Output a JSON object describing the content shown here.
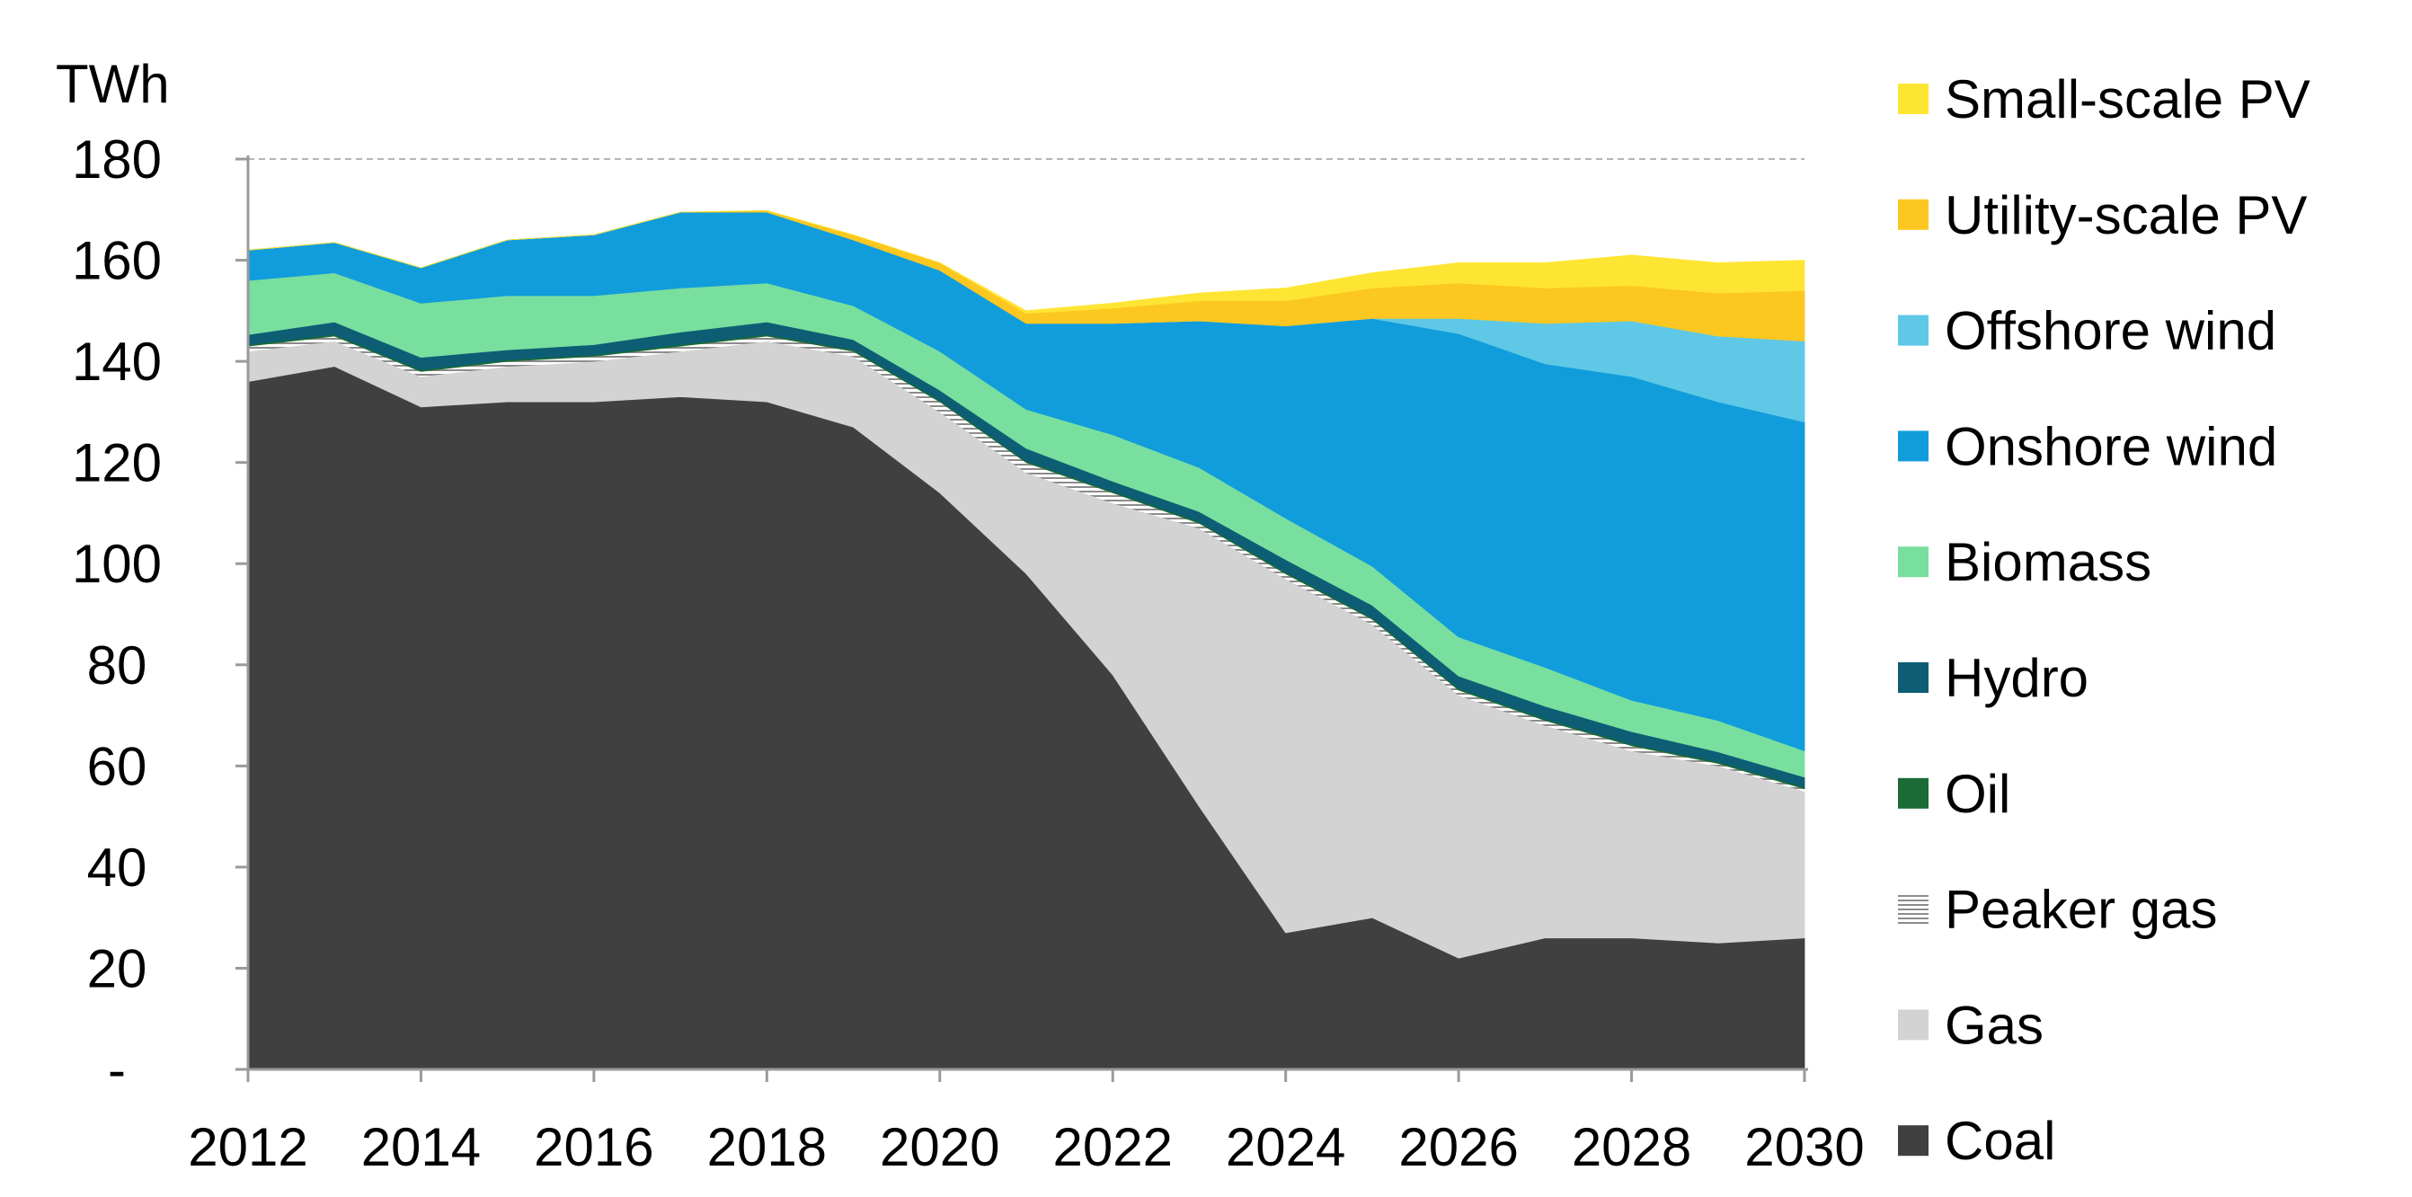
{
  "chart_data": {
    "type": "area",
    "stacked": true,
    "ylabel": "TWh",
    "ylim": [
      0,
      180
    ],
    "yticks": [
      0,
      20,
      40,
      60,
      80,
      100,
      120,
      140,
      160,
      180
    ],
    "ytick_labels": [
      "-",
      "20",
      "40",
      "60",
      "80",
      "100",
      "120",
      "140",
      "160",
      "180"
    ],
    "x": [
      2012,
      2013,
      2014,
      2015,
      2016,
      2017,
      2018,
      2019,
      2020,
      2021,
      2022,
      2023,
      2024,
      2025,
      2026,
      2027,
      2028,
      2029,
      2030
    ],
    "xticks": [
      2012,
      2014,
      2016,
      2018,
      2020,
      2022,
      2024,
      2026,
      2028,
      2030
    ],
    "xtick_labels": [
      "2012",
      "2014",
      "2016",
      "2018",
      "2020",
      "2022",
      "2024",
      "2026",
      "2028",
      "2030"
    ],
    "gridlines": [
      180
    ],
    "legend_position": "right",
    "series": [
      {
        "name": "Coal",
        "color": "#404040",
        "values": [
          136,
          139,
          131,
          132,
          132,
          133,
          132,
          127,
          114,
          98,
          78,
          52,
          27,
          30,
          22,
          26,
          26,
          25,
          26
        ]
      },
      {
        "name": "Gas",
        "color": "#d3d3d3",
        "values": [
          6,
          5,
          6,
          7,
          8,
          9,
          12,
          14,
          16,
          20,
          34,
          55,
          70,
          58,
          52,
          42,
          37,
          35,
          29
        ]
      },
      {
        "name": "Peaker gas",
        "color": "#e6e6e6",
        "values": [
          1,
          1,
          1,
          1,
          1,
          1,
          1,
          1,
          2,
          2,
          2,
          1,
          1,
          1,
          1,
          1,
          1,
          0.5,
          0.5
        ]
      },
      {
        "name": "Oil",
        "color": "#1a6b35",
        "values": [
          0.3,
          0.3,
          0.3,
          0.3,
          0.3,
          0.3,
          0.3,
          0.3,
          0.3,
          0.3,
          0.3,
          0.3,
          0.3,
          0.3,
          0.3,
          0.3,
          0.3,
          0.3,
          0.3
        ]
      },
      {
        "name": "Hydro",
        "color": "#0d5e75",
        "values": [
          2,
          2.5,
          2.5,
          2,
          2,
          2.5,
          2.5,
          2,
          2,
          2.5,
          2,
          2,
          2.5,
          2.5,
          2.5,
          2.5,
          2.5,
          2,
          2
        ]
      },
      {
        "name": "Biomass",
        "color": "#79df9e",
        "values": [
          10.7,
          9.7,
          10.7,
          10.7,
          9.7,
          8.7,
          7.7,
          6.7,
          7.7,
          7.7,
          9.2,
          8.7,
          8.2,
          7.7,
          7.7,
          7.7,
          6.2,
          6.2,
          5.2
        ]
      },
      {
        "name": "Onshore wind",
        "color": "#119ddc",
        "values": [
          6,
          6,
          7,
          11,
          12,
          15,
          14,
          13,
          16,
          17,
          22,
          29,
          38,
          49,
          60,
          60,
          64,
          63,
          65
        ]
      },
      {
        "name": "Offshore wind",
        "color": "#5ec8e6",
        "values": [
          0,
          0,
          0,
          0,
          0,
          0,
          0,
          0,
          0,
          0,
          0,
          0,
          0,
          0,
          3,
          8,
          11,
          13,
          16
        ]
      },
      {
        "name": "Utility-scale PV",
        "color": "#fcc721",
        "values": [
          0,
          0,
          0,
          0,
          0,
          0,
          0.3,
          1,
          1.5,
          2,
          3,
          4,
          5,
          6,
          7,
          7,
          7,
          8.5,
          10
        ]
      },
      {
        "name": "Small-scale PV",
        "color": "#ffe533",
        "values": [
          0,
          0,
          0,
          0,
          0,
          0,
          0,
          0,
          0,
          0.5,
          1,
          1.5,
          2.5,
          3,
          4,
          5,
          6,
          6,
          6
        ]
      }
    ]
  }
}
